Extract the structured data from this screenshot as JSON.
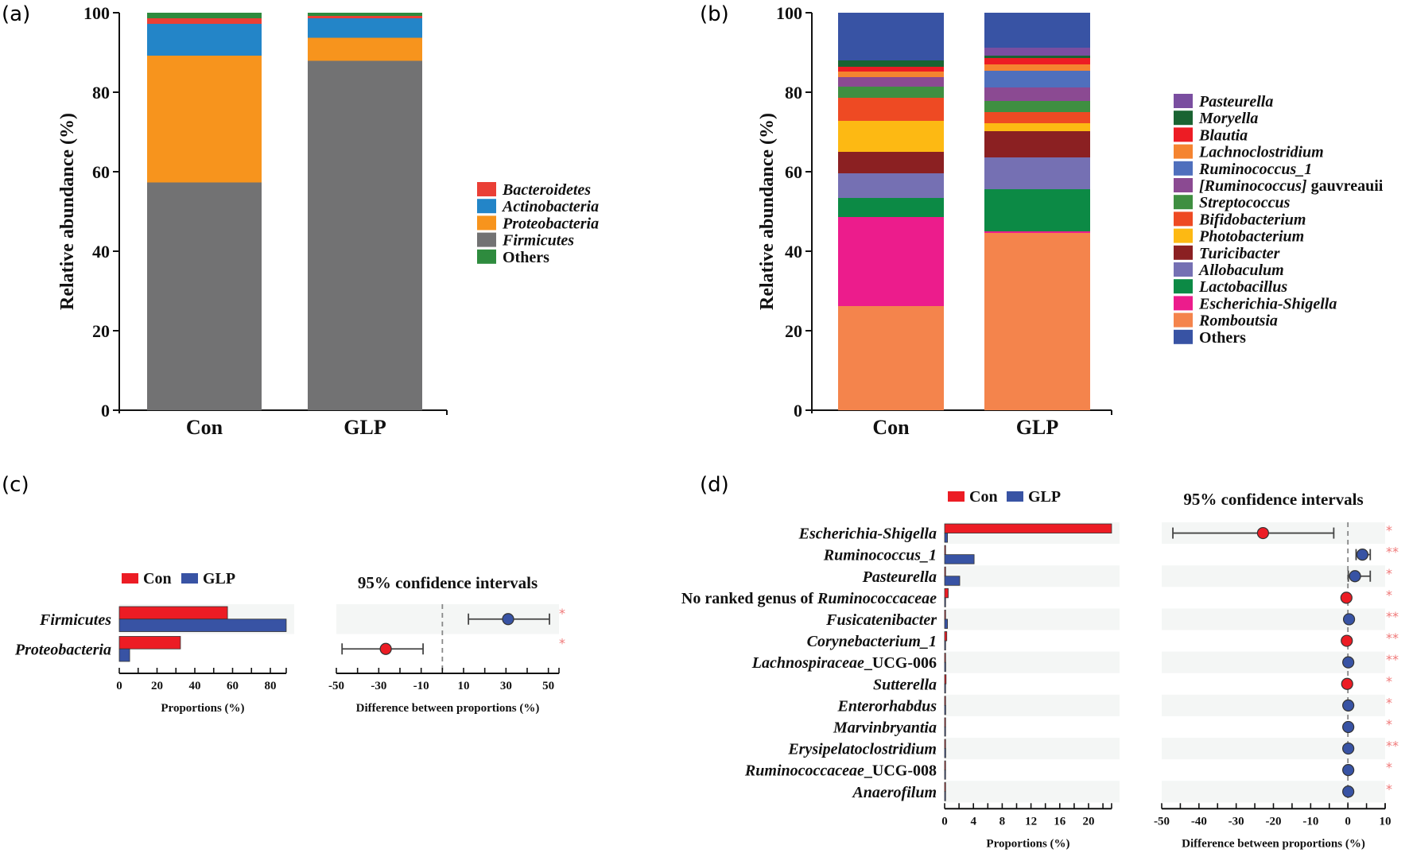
{
  "chart_data": [
    {
      "id": "a",
      "panel_label": "(a)",
      "type": "bar",
      "stacked": true,
      "ylabel": "Relative abundance (%)",
      "xlabel": "",
      "ylim": [
        0,
        100
      ],
      "yticks": [
        0,
        20,
        40,
        60,
        80,
        100
      ],
      "categories": [
        "Con",
        "GLP"
      ],
      "legend_position": "right",
      "series": [
        {
          "name": "Firmicutes",
          "italic": true,
          "color": "#727273",
          "values": [
            57.3,
            87.9
          ]
        },
        {
          "name": "Proteobacteria",
          "italic": true,
          "color": "#f7941d",
          "values": [
            31.9,
            5.8
          ]
        },
        {
          "name": "Actinobacteria",
          "italic": true,
          "color": "#2385c8",
          "values": [
            8.0,
            4.9
          ]
        },
        {
          "name": "Bacteroidetes",
          "italic": true,
          "color": "#ea3f36",
          "values": [
            1.4,
            0.6
          ]
        },
        {
          "name": "Others",
          "italic": false,
          "color": "#2e8b3e",
          "values": [
            1.4,
            0.8
          ]
        }
      ],
      "legend_order": [
        "Bacteroidetes",
        "Actinobacteria",
        "Proteobacteria",
        "Firmicutes",
        "Others"
      ]
    },
    {
      "id": "b",
      "panel_label": "(b)",
      "type": "bar",
      "stacked": true,
      "ylabel": "Relative abundance (%)",
      "xlabel": "",
      "ylim": [
        0,
        100
      ],
      "yticks": [
        0,
        20,
        40,
        60,
        80,
        100
      ],
      "categories": [
        "Con",
        "GLP"
      ],
      "legend_position": "right",
      "series": [
        {
          "name": "Romboutsia",
          "italic": true,
          "color": "#f4844c",
          "values": [
            26.2,
            44.6
          ]
        },
        {
          "name": "Escherichia-Shigella",
          "italic": true,
          "color": "#ec1c8c",
          "values": [
            22.4,
            0.4
          ]
        },
        {
          "name": "Lactobacillus",
          "italic": true,
          "color": "#0c8a45",
          "values": [
            4.8,
            10.6
          ]
        },
        {
          "name": "Allobaculum",
          "italic": true,
          "color": "#7570b3",
          "values": [
            6.2,
            8.0
          ]
        },
        {
          "name": "Turicibacter",
          "italic": true,
          "color": "#8b2022",
          "values": [
            5.4,
            6.6
          ]
        },
        {
          "name": "Photobacterium",
          "italic": true,
          "color": "#fdb913",
          "values": [
            7.8,
            2.0
          ]
        },
        {
          "name": "Bifidobacterium",
          "italic": true,
          "color": "#ee4a23",
          "values": [
            5.8,
            2.8
          ]
        },
        {
          "name": "Streptococcus",
          "italic": true,
          "color": "#3f8f41",
          "values": [
            2.8,
            2.8
          ]
        },
        {
          "name": "[Ruminococcus] gauvreauii",
          "italic": true,
          "italic_part": "[Ruminococcus]",
          "plain_part": " gauvreauii",
          "color": "#8b4a92",
          "values": [
            2.4,
            3.4
          ]
        },
        {
          "name": "Ruminococcus_1",
          "italic": true,
          "color": "#4f6fbd",
          "values": [
            0.0,
            4.2
          ]
        },
        {
          "name": "Lachnoclostridium",
          "italic": true,
          "color": "#f58430",
          "values": [
            1.4,
            1.6
          ]
        },
        {
          "name": "Blautia",
          "italic": true,
          "color": "#ed1c24",
          "values": [
            1.2,
            1.6
          ]
        },
        {
          "name": "Moryella",
          "italic": true,
          "color": "#1a6332",
          "values": [
            1.6,
            0.6
          ]
        },
        {
          "name": "Pasteurella",
          "italic": true,
          "color": "#7a4ea0",
          "values": [
            0.0,
            2.0
          ]
        },
        {
          "name": "Others",
          "italic": false,
          "color": "#3853a4",
          "values": [
            12.0,
            8.8
          ]
        }
      ],
      "legend_order": [
        "Pasteurella",
        "Moryella",
        "Blautia",
        "Lachnoclostridium",
        "Ruminococcus_1",
        "[Ruminococcus] gauvreauii",
        "Streptococcus",
        "Bifidobacterium",
        "Photobacterium",
        "Turicibacter",
        "Allobaculum",
        "Lactobacillus",
        "Escherichia-Shigella",
        "Romboutsia",
        "Others"
      ]
    },
    {
      "id": "c",
      "panel_label": "(c)",
      "type": "bar",
      "orientation": "horizontal",
      "xlabel": "Proportions (%)",
      "xlim": [
        0,
        88.4
      ],
      "xticks_labeled": [
        0,
        20,
        40,
        60,
        80
      ],
      "xticks_minor_step": 10,
      "legend": [
        {
          "name": "Con",
          "color": "#ec1c24"
        },
        {
          "name": "GLP",
          "color": "#3853a4"
        }
      ],
      "legend_position": "top",
      "categories": [
        "Firmicutes",
        "Proteobacteria"
      ],
      "series": [
        {
          "name": "Con",
          "values": [
            57.3,
            32.4
          ]
        },
        {
          "name": "GLP",
          "values": [
            88.4,
            5.5
          ]
        }
      ],
      "ci": {
        "title": "95% confidence intervals",
        "xlabel": "Difference between proportions (%)",
        "xlim": [
          -50,
          55
        ],
        "xticks_labeled": [
          -50,
          -30,
          -10,
          10,
          30,
          50
        ],
        "xticks_minor_step": 10,
        "rows": [
          {
            "name": "Firmicutes",
            "diff": 31.0,
            "lo": 12.3,
            "hi": 50.5,
            "group": "GLP",
            "sig": "*"
          },
          {
            "name": "Proteobacteria",
            "diff": -26.7,
            "lo": -47.3,
            "hi": -9.1,
            "group": "Con",
            "sig": "*"
          }
        ]
      }
    },
    {
      "id": "d",
      "panel_label": "(d)",
      "type": "bar",
      "orientation": "horizontal",
      "xlabel": "Proportions (%)",
      "xlim": [
        0,
        23.2
      ],
      "xticks_labeled": [
        0,
        4,
        8,
        12,
        16,
        20
      ],
      "xticks_minor_step": 2,
      "legend": [
        {
          "name": "Con",
          "color": "#ec1c24"
        },
        {
          "name": "GLP",
          "color": "#3853a4"
        }
      ],
      "legend_position": "top",
      "categories": [
        {
          "italic": "Escherichia-Shigella",
          "plain_before": "",
          "plain_after": ""
        },
        {
          "italic": "Ruminococcus_1",
          "plain_before": "",
          "plain_after": ""
        },
        {
          "italic": "Pasteurella",
          "plain_before": "",
          "plain_after": ""
        },
        {
          "italic": "Ruminococcaceae",
          "plain_before": "No ranked genus of ",
          "plain_after": ""
        },
        {
          "italic": "Fusicatenibacter",
          "plain_before": "",
          "plain_after": ""
        },
        {
          "italic": "Corynebacterium_1",
          "plain_before": "",
          "plain_after": ""
        },
        {
          "italic": "Lachnospiraceae",
          "plain_before": "",
          "plain_after": "_UCG-006"
        },
        {
          "italic": "Sutterella",
          "plain_before": "",
          "plain_after": ""
        },
        {
          "italic": "Enterorhabdus",
          "plain_before": "",
          "plain_after": ""
        },
        {
          "italic": "Marvinbryantia",
          "plain_before": "",
          "plain_after": ""
        },
        {
          "italic": "Erysipelatoclostridium",
          "plain_before": "",
          "plain_after": ""
        },
        {
          "italic": "Ruminococcaceae",
          "plain_before": "",
          "plain_after": "_UCG-008"
        },
        {
          "italic": "Anaerofilum",
          "plain_before": "",
          "plain_after": ""
        }
      ],
      "series": [
        {
          "name": "Con",
          "values": [
            23.2,
            0.0,
            0.0,
            0.5,
            0.05,
            0.3,
            0.05,
            0.2,
            0.1,
            0.05,
            0.1,
            0.05,
            0.05
          ]
        },
        {
          "name": "GLP",
          "values": [
            0.4,
            4.1,
            2.1,
            0.05,
            0.4,
            0.02,
            0.15,
            0.02,
            0.15,
            0.1,
            0.15,
            0.1,
            0.1
          ]
        }
      ],
      "ci": {
        "title": "95% confidence intervals",
        "xlabel": "Difference between proportions (%)",
        "xlim": [
          -50,
          10
        ],
        "xticks_labeled": [
          -50,
          -40,
          -30,
          -20,
          -10,
          0,
          10
        ],
        "xticks_minor_step": 5,
        "rows": [
          {
            "diff": -22.8,
            "lo": -47.0,
            "hi": -3.8,
            "group": "Con",
            "sig": "*"
          },
          {
            "diff": 3.9,
            "lo": 2.2,
            "hi": 6.0,
            "group": "GLP",
            "sig": "**"
          },
          {
            "diff": 1.9,
            "lo": 0.1,
            "hi": 6.0,
            "group": "GLP",
            "sig": "*"
          },
          {
            "diff": -0.4,
            "lo": -0.8,
            "hi": -0.1,
            "group": "Con",
            "sig": "*"
          },
          {
            "diff": 0.3,
            "lo": 0.1,
            "hi": 0.6,
            "group": "GLP",
            "sig": "**"
          },
          {
            "diff": -0.3,
            "lo": -0.6,
            "hi": -0.1,
            "group": "Con",
            "sig": "**"
          },
          {
            "diff": 0.1,
            "lo": 0.05,
            "hi": 0.2,
            "group": "GLP",
            "sig": "**"
          },
          {
            "diff": -0.2,
            "lo": -0.4,
            "hi": -0.05,
            "group": "Con",
            "sig": "*"
          },
          {
            "diff": 0.1,
            "lo": 0.02,
            "hi": 0.2,
            "group": "GLP",
            "sig": "*"
          },
          {
            "diff": 0.1,
            "lo": 0.02,
            "hi": 0.2,
            "group": "GLP",
            "sig": "*"
          },
          {
            "diff": 0.1,
            "lo": 0.02,
            "hi": 0.2,
            "group": "GLP",
            "sig": "**"
          },
          {
            "diff": 0.1,
            "lo": 0.02,
            "hi": 0.2,
            "group": "GLP",
            "sig": "*"
          },
          {
            "diff": 0.1,
            "lo": 0.02,
            "hi": 0.2,
            "group": "GLP",
            "sig": "*"
          }
        ]
      }
    }
  ]
}
